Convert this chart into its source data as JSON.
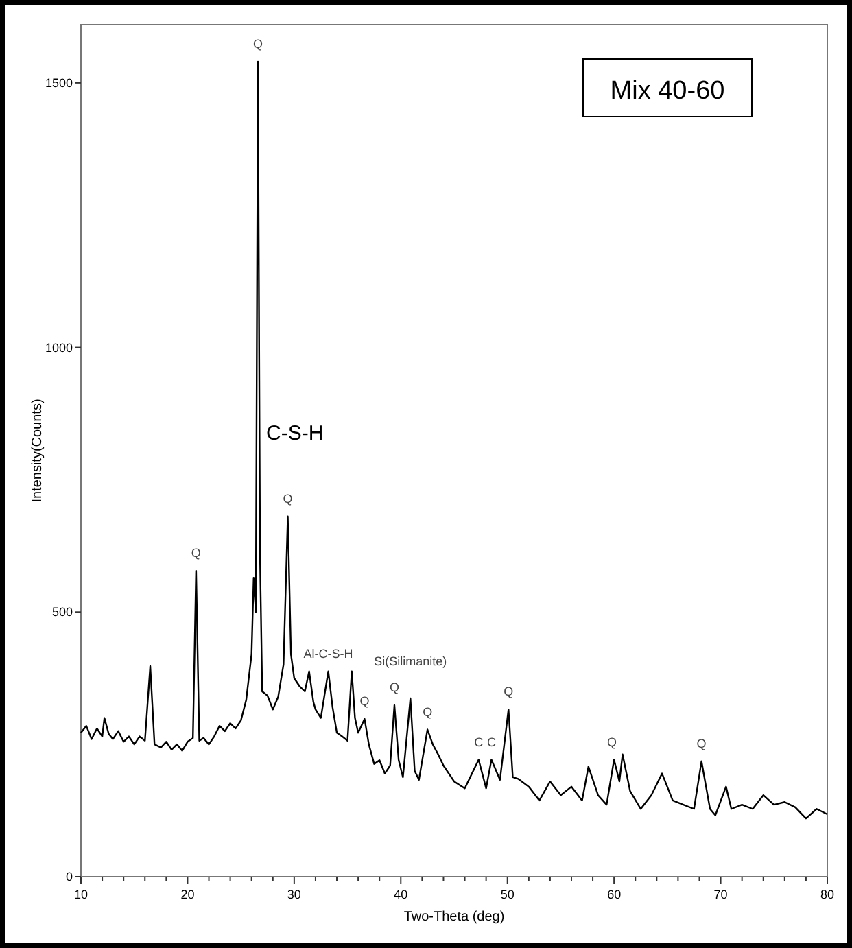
{
  "chart_data": {
    "type": "line",
    "title": "Mix 40-60",
    "xlabel": "Two-Theta (deg)",
    "ylabel": "Intensity(Counts)",
    "xlim": [
      10,
      80
    ],
    "ylim": [
      0,
      1610
    ],
    "xticks": [
      10,
      20,
      30,
      40,
      50,
      60,
      70,
      80
    ],
    "yticks": [
      0,
      500,
      1000,
      1500
    ],
    "grid": false,
    "marker": "none",
    "line_style": "solid",
    "series": [
      {
        "color": "#000000",
        "x": [
          10,
          10.5,
          11,
          11.5,
          12,
          12.2,
          12.6,
          13,
          13.5,
          14,
          14.5,
          15,
          15.5,
          16,
          16.5,
          16.9,
          17.5,
          18,
          18.5,
          19,
          19.5,
          20,
          20.5,
          20.8,
          21.1,
          21.5,
          22,
          22.5,
          23,
          23.5,
          24,
          24.5,
          25,
          25.5,
          26,
          26.2,
          26.4,
          26.6,
          26.8,
          27,
          27.5,
          28,
          28.5,
          29,
          29.4,
          29.7,
          30,
          30.5,
          31,
          31.4,
          31.8,
          32,
          32.5,
          33.2,
          33.6,
          34,
          34.5,
          35,
          35.4,
          35.7,
          36,
          36.6,
          37,
          37.5,
          38,
          38.5,
          39,
          39.4,
          39.8,
          40.2,
          40.9,
          41.3,
          41.7,
          42.5,
          43,
          43.5,
          44,
          45,
          46,
          47.3,
          48,
          48.5,
          49.3,
          50.1,
          50.5,
          51,
          52,
          53,
          54,
          55,
          56,
          57,
          57.6,
          58.5,
          59.3,
          60,
          60.5,
          60.8,
          61.5,
          62.5,
          63.5,
          64.5,
          65.5,
          66.5,
          67.5,
          68.2,
          69,
          69.5,
          70.5,
          71,
          72,
          73,
          74,
          75,
          76,
          77,
          78,
          79,
          80
        ],
        "values": [
          272,
          285,
          260,
          280,
          265,
          300,
          270,
          260,
          275,
          255,
          265,
          250,
          265,
          257,
          398,
          250,
          244,
          255,
          240,
          250,
          238,
          255,
          262,
          578,
          257,
          262,
          250,
          265,
          285,
          275,
          290,
          280,
          295,
          334,
          420,
          565,
          500,
          1540,
          600,
          350,
          342,
          316,
          340,
          401,
          681,
          420,
          375,
          360,
          350,
          388,
          330,
          316,
          300,
          388,
          320,
          272,
          265,
          257,
          388,
          300,
          272,
          298,
          250,
          213,
          220,
          195,
          210,
          324,
          220,
          188,
          337,
          200,
          183,
          278,
          250,
          231,
          210,
          180,
          167,
          221,
          167,
          221,
          183,
          316,
          188,
          185,
          170,
          144,
          180,
          154,
          170,
          144,
          208,
          154,
          136,
          221,
          180,
          231,
          162,
          128,
          154,
          195,
          144,
          136,
          128,
          218,
          128,
          116,
          170,
          128,
          136,
          128,
          154,
          136,
          141,
          131,
          110,
          128,
          118
        ]
      }
    ],
    "annotations": [
      {
        "text": "Q",
        "x": 26.6,
        "y": 1540
      },
      {
        "text": "Q",
        "x": 20.8,
        "y": 578
      },
      {
        "text": "C-S-H",
        "x": 26.6,
        "y": 800
      },
      {
        "text": "Q",
        "x": 29.4,
        "y": 681
      },
      {
        "text": "Al-C-S-H",
        "x": 33.2,
        "y": 388
      },
      {
        "text": "Q",
        "x": 36.6,
        "y": 298
      },
      {
        "text": "Q",
        "x": 39.4,
        "y": 324
      },
      {
        "text": "Si(Silimanite)",
        "x": 40.9,
        "y": 337
      },
      {
        "text": "Q",
        "x": 42.5,
        "y": 278
      },
      {
        "text": "C",
        "x": 47.3,
        "y": 221
      },
      {
        "text": "C",
        "x": 48.5,
        "y": 221
      },
      {
        "text": "Q",
        "x": 50.1,
        "y": 316
      },
      {
        "text": "Q",
        "x": 59.8,
        "y": 221
      },
      {
        "text": "Q",
        "x": 68.2,
        "y": 218
      }
    ]
  }
}
